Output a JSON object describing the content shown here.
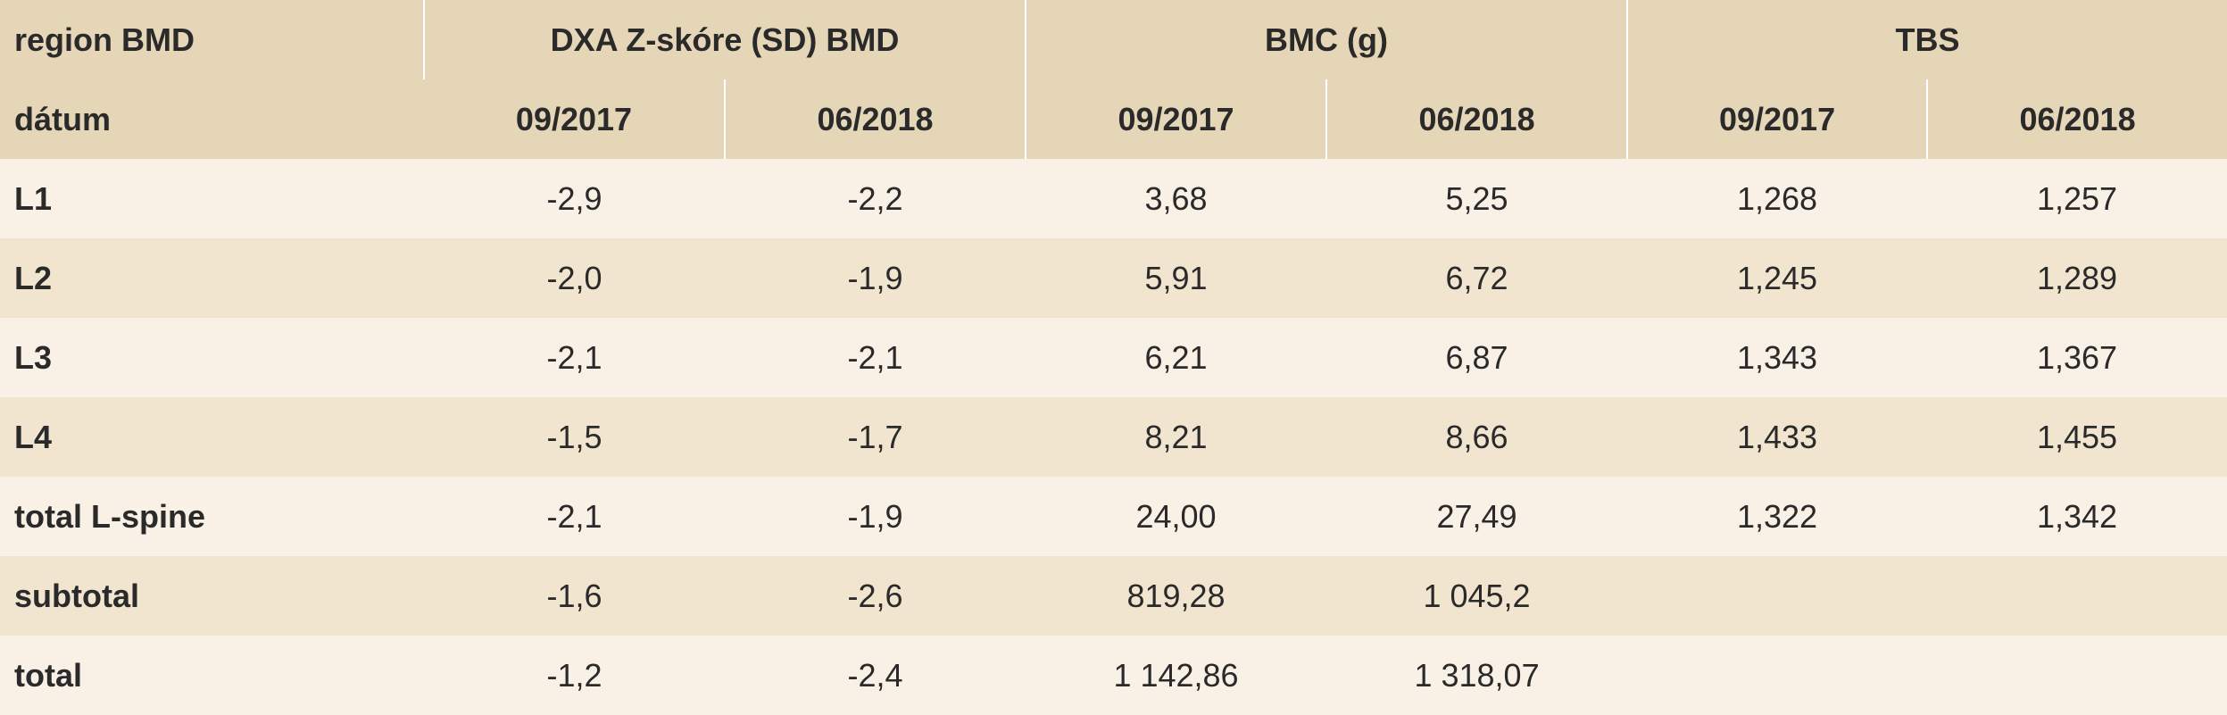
{
  "table": {
    "header_top": {
      "row_label": "region BMD",
      "groups": [
        "DXA Z-skóre (SD) BMD",
        "BMC (g)",
        "TBS"
      ]
    },
    "header_bottom": {
      "row_label": "dátum",
      "dates": [
        "09/2017",
        "06/2018",
        "09/2017",
        "06/2018",
        "09/2017",
        "06/2018"
      ]
    },
    "rows": [
      {
        "label": "L1",
        "cells": [
          "-2,9",
          "-2,2",
          "3,68",
          "5,25",
          "1,268",
          "1,257"
        ]
      },
      {
        "label": "L2",
        "cells": [
          "-2,0",
          "-1,9",
          "5,91",
          "6,72",
          "1,245",
          "1,289"
        ]
      },
      {
        "label": "L3",
        "cells": [
          "-2,1",
          "-2,1",
          "6,21",
          "6,87",
          "1,343",
          "1,367"
        ]
      },
      {
        "label": "L4",
        "cells": [
          "-1,5",
          "-1,7",
          "8,21",
          "8,66",
          "1,433",
          "1,455"
        ]
      },
      {
        "label": "total L-spine",
        "cells": [
          "-2,1",
          "-1,9",
          "24,00",
          "27,49",
          "1,322",
          "1,342"
        ]
      },
      {
        "label": "subtotal",
        "cells": [
          "-1,6",
          "-2,6",
          "819,28",
          "1 045,2",
          "",
          ""
        ]
      },
      {
        "label": "total",
        "cells": [
          "-1,2",
          "-2,4",
          "1 142,86",
          "1 318,07",
          "",
          ""
        ]
      }
    ]
  },
  "colors": {
    "header_bg": "#e6d6b8",
    "row_light": "#f9f0e6",
    "row_dark": "#f1e5d0"
  }
}
